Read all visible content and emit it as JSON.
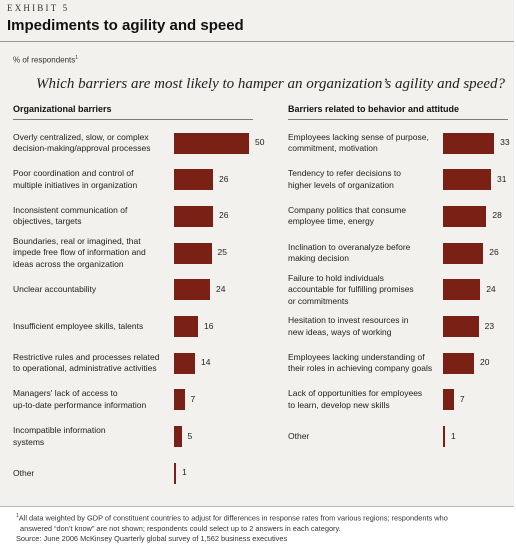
{
  "exhibit_label": "EXHIBIT 5",
  "title": "Impediments to agility and speed",
  "unit_label": "% of respondents",
  "unit_note_marker": "1",
  "question": "Which barriers are most likely to hamper an organization’s agility and speed?",
  "colors": {
    "bar": "#7a2014",
    "panel": "#f2f1ee"
  },
  "chart_data": [
    {
      "type": "bar",
      "title": "Organizational barriers",
      "categories": [
        [
          "Overly centralized, slow, or complex",
          "decision-making/approval processes"
        ],
        [
          "Poor coordination and control of",
          "multiple initiatives in organization"
        ],
        [
          "Inconsistent communication of",
          "objectives, targets"
        ],
        [
          "Boundaries, real or imagined, that",
          "impede free flow of information and",
          "ideas across the organization"
        ],
        [
          "Unclear accountability"
        ],
        [
          "Insufficient employee skills, talents"
        ],
        [
          "Restrictive rules and processes related",
          "to operational, administrative activities"
        ],
        [
          "Managers' lack of access to",
          "up-to-date performance information"
        ],
        [
          "Incompatible information",
          "systems"
        ],
        [
          "Other"
        ]
      ],
      "values": [
        50,
        26,
        26,
        25,
        24,
        16,
        14,
        7,
        5,
        1
      ]
    },
    {
      "type": "bar",
      "title": "Barriers related to behavior and attitude",
      "categories": [
        [
          "Employees lacking sense of purpose,",
          "commitment, motivation"
        ],
        [
          "Tendency to refer decisions to",
          "higher levels of organization"
        ],
        [
          "Company politics that consume",
          "employee time, energy"
        ],
        [
          "Inclination to overanalyze before",
          "making decision"
        ],
        [
          "Failure to hold individuals",
          "accountable for fulfilling promises",
          "or commitments"
        ],
        [
          "Hesitation to invest resources in",
          "new ideas, ways of working"
        ],
        [
          "Employees lacking understanding of",
          "their roles in achieving company goals"
        ],
        [
          "Lack of opportunities for employees",
          "to learn, develop new skills"
        ],
        [
          "Other"
        ]
      ],
      "values": [
        33,
        31,
        28,
        26,
        24,
        23,
        20,
        7,
        1
      ]
    }
  ],
  "footnote": {
    "marker": "1",
    "lines": [
      "All data weighted by GDP of constituent countries to adjust for differences in response rates from various regions; respondents who",
      "answered “don’t know” are not shown; respondents could select up to 2 answers in each category."
    ],
    "source": "Source: June 2006 McKinsey Quarterly global survey of 1,562 business executives"
  }
}
